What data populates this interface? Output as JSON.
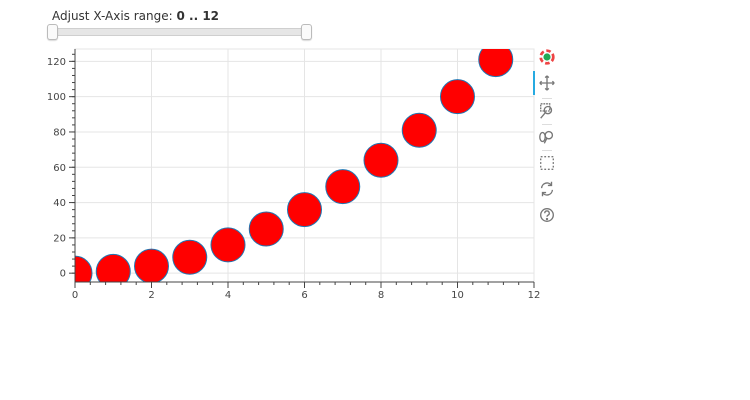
{
  "slider": {
    "title": "Adjust X-Axis range:",
    "value_text": "0 .. 12",
    "start": 0,
    "end": 12
  },
  "toolbar": {
    "tools": [
      "bokeh-logo-icon",
      "pan-icon",
      "box-zoom-icon",
      "wheel-zoom-icon",
      "box-select-icon",
      "reset-icon",
      "help-icon"
    ]
  },
  "colors": {
    "marker_fill": "#ff0000",
    "marker_line": "#1f77b4",
    "grid": "#e5e5e5",
    "axis": "#444444"
  },
  "chart_data": {
    "type": "scatter",
    "x": [
      0,
      1,
      2,
      3,
      4,
      5,
      6,
      7,
      8,
      9,
      10,
      11
    ],
    "y": [
      0,
      1,
      4,
      9,
      16,
      25,
      36,
      49,
      64,
      81,
      100,
      121
    ],
    "xlim": [
      0,
      12
    ],
    "ylim": [
      -5,
      127
    ],
    "xticks": [
      "0",
      "2",
      "4",
      "6",
      "8",
      "10",
      "12"
    ],
    "yticks": [
      "0",
      "20",
      "40",
      "60",
      "80",
      "100",
      "120"
    ],
    "grid": true,
    "marker": "circle"
  }
}
